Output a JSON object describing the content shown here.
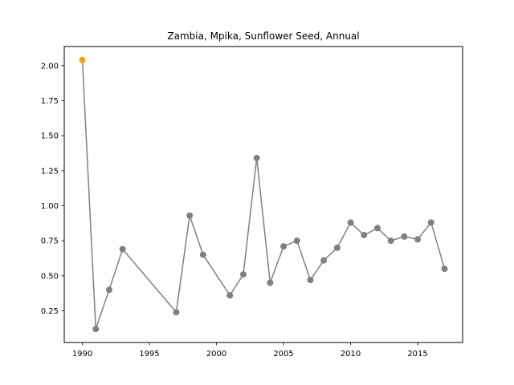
{
  "chart_data": {
    "type": "line",
    "title": "Zambia, Mpika, Sunflower Seed, Annual",
    "xlabel": "",
    "ylabel": "",
    "x": [
      1990,
      1991,
      1992,
      1993,
      1997,
      1998,
      1999,
      2001,
      2002,
      2003,
      2004,
      2005,
      2006,
      2007,
      2008,
      2009,
      2010,
      2011,
      2012,
      2013,
      2014,
      2015,
      2016,
      2017
    ],
    "values": [
      2.04,
      0.12,
      0.4,
      0.69,
      0.24,
      0.93,
      0.65,
      0.36,
      0.51,
      1.34,
      0.45,
      0.71,
      0.75,
      0.47,
      0.61,
      0.7,
      0.88,
      0.79,
      0.84,
      0.75,
      0.78,
      0.76,
      0.88,
      0.55
    ],
    "highlight_index": 0,
    "xlim": [
      1988.65,
      2018.35
    ],
    "ylim": [
      0.024,
      2.136
    ],
    "xticks": [
      1990,
      1995,
      2000,
      2005,
      2010,
      2015
    ],
    "xtick_labels": [
      "1990",
      "1995",
      "2000",
      "2005",
      "2010",
      "2015"
    ],
    "yticks": [
      0.25,
      0.5,
      0.75,
      1.0,
      1.25,
      1.5,
      1.75,
      2.0
    ],
    "ytick_labels": [
      "0.25",
      "0.50",
      "0.75",
      "1.00",
      "1.25",
      "1.50",
      "1.75",
      "2.00"
    ],
    "grid": false,
    "legend": "none",
    "colors": {
      "line": "#808080",
      "marker": "#808080",
      "highlight": "#ffa500"
    }
  }
}
